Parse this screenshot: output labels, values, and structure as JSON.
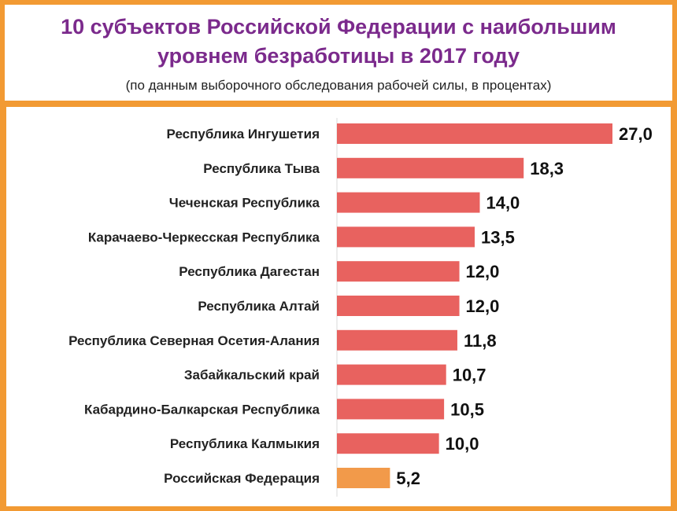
{
  "header": {
    "title_line1": "10 субъектов Российской Федерации с наибольшим",
    "title_line2": "уровнем безработицы в 2017 году",
    "subtitle": "(по данным выборочного обследования рабочей силы, в процентах)"
  },
  "colors": {
    "bar": "#e8625f",
    "bar_highlight": "#f29a4a",
    "frame": "#f29a33",
    "title": "#7b2a8c"
  },
  "chart_data": {
    "type": "bar",
    "orientation": "horizontal",
    "categories": [
      "Республика Ингушетия",
      "Республика Тыва",
      "Чеченская Республика",
      "Карачаево-Черкесская Республика",
      "Республика Дагестан",
      "Республика Алтай",
      "Республика Северная Осетия-Алания",
      "Забайкальский край",
      "Кабардино-Балкарская Республика",
      "Республика Калмыкия",
      "Российская Федерация"
    ],
    "values": [
      27.0,
      18.3,
      14.0,
      13.5,
      12.0,
      12.0,
      11.8,
      10.7,
      10.5,
      10.0,
      5.2
    ],
    "labels": [
      "27,0",
      "18,3",
      "14,0",
      "13,5",
      "12,0",
      "12,0",
      "11,8",
      "10,7",
      "10,5",
      "10,0",
      "5,2"
    ],
    "highlight_index": 10,
    "xlim": [
      0,
      27
    ],
    "grid": false,
    "legend": "none"
  }
}
